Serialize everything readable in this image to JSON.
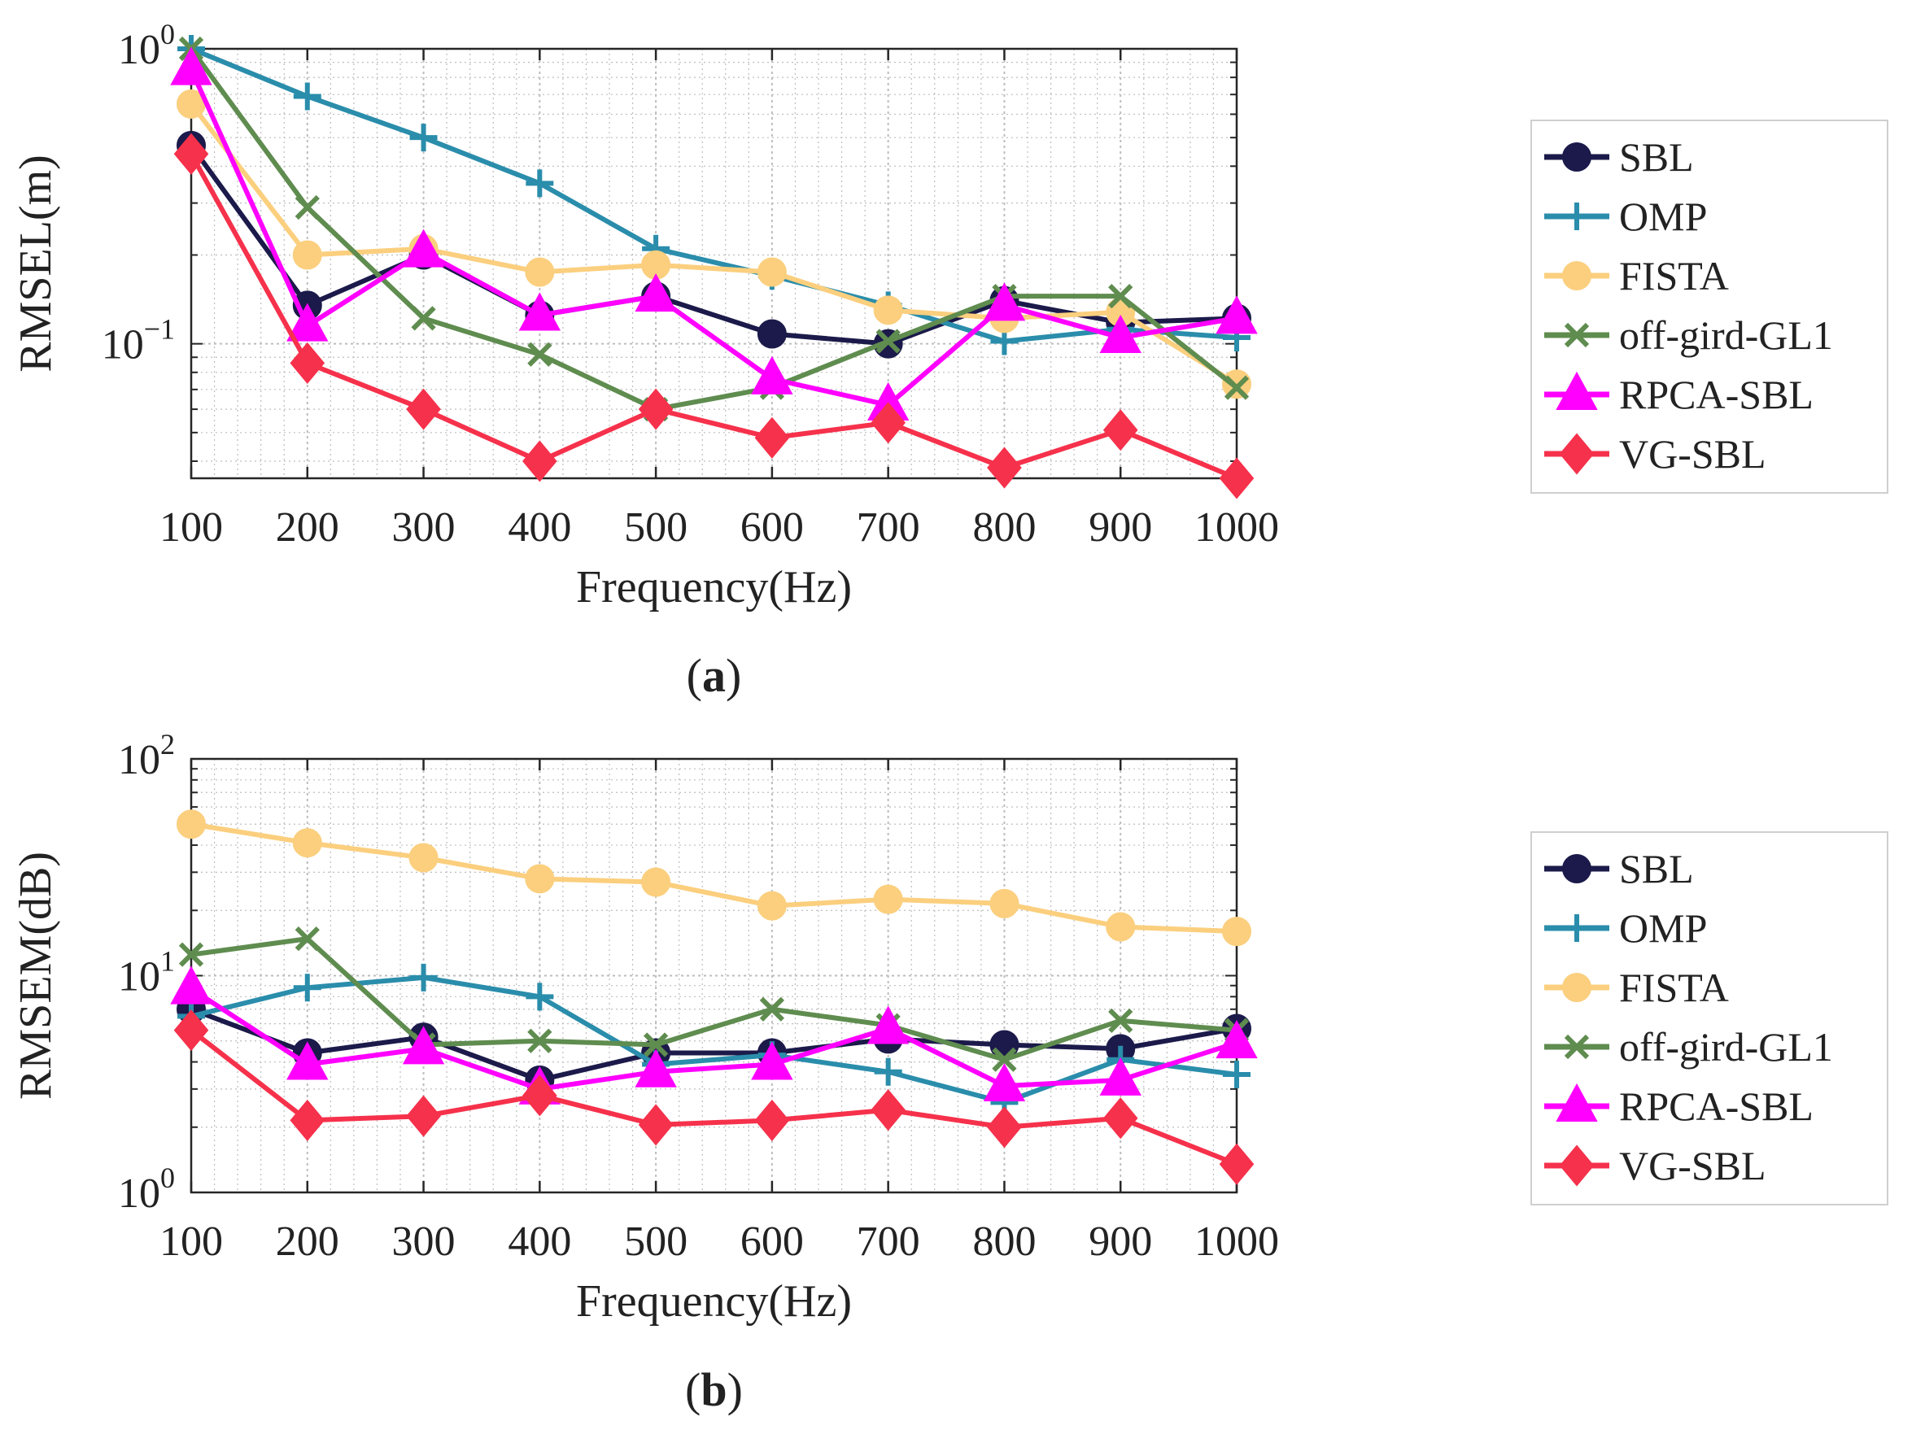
{
  "chart_data": [
    {
      "type": "line",
      "caption_letter": "a",
      "xlabel": "Frequency(Hz)",
      "ylabel": "RMSEL(m)",
      "x": [
        100,
        200,
        300,
        400,
        500,
        600,
        700,
        800,
        900,
        1000
      ],
      "xticks": [
        "100",
        "200",
        "300",
        "400",
        "500",
        "600",
        "700",
        "800",
        "900",
        "1000"
      ],
      "yscale": "log",
      "ylim": [
        0.035,
        1
      ],
      "yticks": [
        {
          "value": 0.1,
          "base": "10",
          "exp": "−1"
        },
        {
          "value": 1,
          "base": "10",
          "exp": "0"
        }
      ],
      "grid": true,
      "legend_position": "right",
      "series": [
        {
          "name": "SBL",
          "color": "#1b1a4a",
          "marker": "circle",
          "values": [
            0.47,
            0.135,
            0.2,
            0.125,
            0.145,
            0.108,
            0.1,
            0.14,
            0.118,
            0.122
          ]
        },
        {
          "name": "OMP",
          "color": "#2a8dab",
          "marker": "plus",
          "values": [
            1.0,
            0.69,
            0.5,
            0.35,
            0.21,
            0.17,
            0.135,
            0.102,
            0.112,
            0.105
          ]
        },
        {
          "name": "FISTA",
          "color": "#fbcf7e",
          "marker": "circle",
          "values": [
            0.65,
            0.2,
            0.21,
            0.175,
            0.185,
            0.175,
            0.13,
            0.122,
            0.128,
            0.073
          ]
        },
        {
          "name": "off-gird-GL1",
          "color": "#5f8c4f",
          "marker": "cross",
          "values": [
            1.0,
            0.29,
            0.122,
            0.092,
            0.06,
            0.071,
            0.102,
            0.145,
            0.145,
            0.071
          ]
        },
        {
          "name": "RPCA-SBL",
          "color": "#ff00ff",
          "marker": "triangle",
          "values": [
            0.85,
            0.115,
            0.205,
            0.125,
            0.145,
            0.076,
            0.062,
            0.135,
            0.105,
            0.122
          ]
        },
        {
          "name": "VG-SBL",
          "color": "#f6314b",
          "marker": "diamond",
          "values": [
            0.44,
            0.086,
            0.06,
            0.04,
            0.06,
            0.048,
            0.054,
            0.038,
            0.051,
            0.035
          ]
        }
      ]
    },
    {
      "type": "line",
      "caption_letter": "b",
      "xlabel": "Frequency(Hz)",
      "ylabel": "RMSEM(dB)",
      "x": [
        100,
        200,
        300,
        400,
        500,
        600,
        700,
        800,
        900,
        1000
      ],
      "xticks": [
        "100",
        "200",
        "300",
        "400",
        "500",
        "600",
        "700",
        "800",
        "900",
        "1000"
      ],
      "yscale": "log",
      "ylim": [
        1,
        100
      ],
      "yticks": [
        {
          "value": 1,
          "base": "10",
          "exp": "0"
        },
        {
          "value": 10,
          "base": "10",
          "exp": "1"
        },
        {
          "value": 100,
          "base": "10",
          "exp": "2"
        }
      ],
      "grid": true,
      "legend_position": "right",
      "series": [
        {
          "name": "SBL",
          "color": "#1b1a4a",
          "marker": "circle",
          "values": [
            7.0,
            4.4,
            5.2,
            3.3,
            4.4,
            4.4,
            5.1,
            4.8,
            4.6,
            5.7
          ]
        },
        {
          "name": "OMP",
          "color": "#2a8dab",
          "marker": "plus",
          "values": [
            6.5,
            8.8,
            9.8,
            8.0,
            3.9,
            4.3,
            3.6,
            2.6,
            4.1,
            3.5
          ]
        },
        {
          "name": "FISTA",
          "color": "#fbcf7e",
          "marker": "circle",
          "values": [
            50,
            41,
            35,
            28,
            27,
            21,
            22.5,
            21.5,
            16.8,
            16
          ]
        },
        {
          "name": "off-gird-GL1",
          "color": "#5f8c4f",
          "marker": "cross",
          "values": [
            12.5,
            14.8,
            4.8,
            5.0,
            4.8,
            7.0,
            5.9,
            4.1,
            6.2,
            5.6
          ]
        },
        {
          "name": "RPCA-SBL",
          "color": "#ff00ff",
          "marker": "triangle",
          "values": [
            8.7,
            3.9,
            4.6,
            3.0,
            3.6,
            3.9,
            5.7,
            3.1,
            3.3,
            4.9
          ]
        },
        {
          "name": "VG-SBL",
          "color": "#f6314b",
          "marker": "diamond",
          "values": [
            5.6,
            2.15,
            2.25,
            2.8,
            2.05,
            2.15,
            2.4,
            2.0,
            2.2,
            1.35
          ]
        }
      ]
    }
  ]
}
